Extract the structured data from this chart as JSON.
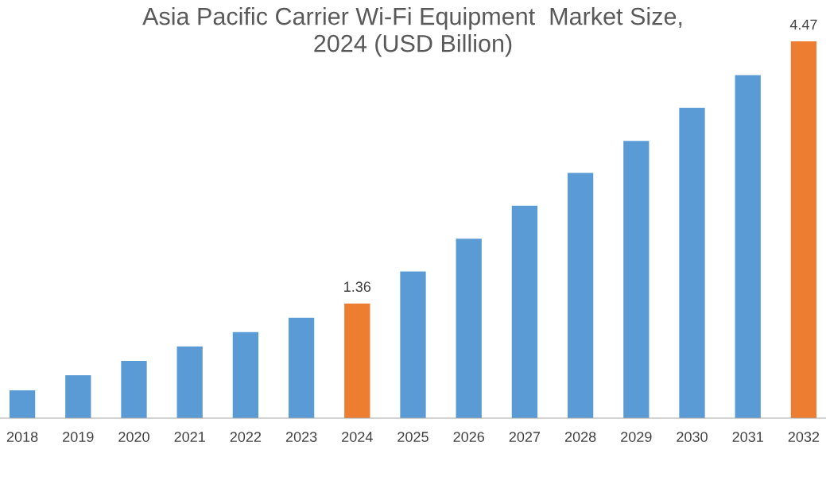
{
  "chart_data": {
    "type": "bar",
    "title": "Asia Pacific Carrier Wi-Fi Equipment  Market Size,\n2024 (USD Billion)",
    "categories": [
      "2018",
      "2019",
      "2020",
      "2021",
      "2022",
      "2023",
      "2024",
      "2025",
      "2026",
      "2027",
      "2028",
      "2029",
      "2030",
      "2031",
      "2032"
    ],
    "values": [
      0.33,
      0.51,
      0.68,
      0.85,
      1.02,
      1.19,
      1.36,
      1.74,
      2.13,
      2.52,
      2.91,
      3.29,
      3.68,
      4.07,
      4.47
    ],
    "colors": [
      "#5b9bd5",
      "#5b9bd5",
      "#5b9bd5",
      "#5b9bd5",
      "#5b9bd5",
      "#5b9bd5",
      "#ed7d31",
      "#5b9bd5",
      "#5b9bd5",
      "#5b9bd5",
      "#5b9bd5",
      "#5b9bd5",
      "#5b9bd5",
      "#5b9bd5",
      "#ed7d31"
    ],
    "value_labels": [
      null,
      null,
      null,
      null,
      null,
      null,
      "1.36",
      null,
      null,
      null,
      null,
      null,
      null,
      null,
      "4.47"
    ]
  }
}
